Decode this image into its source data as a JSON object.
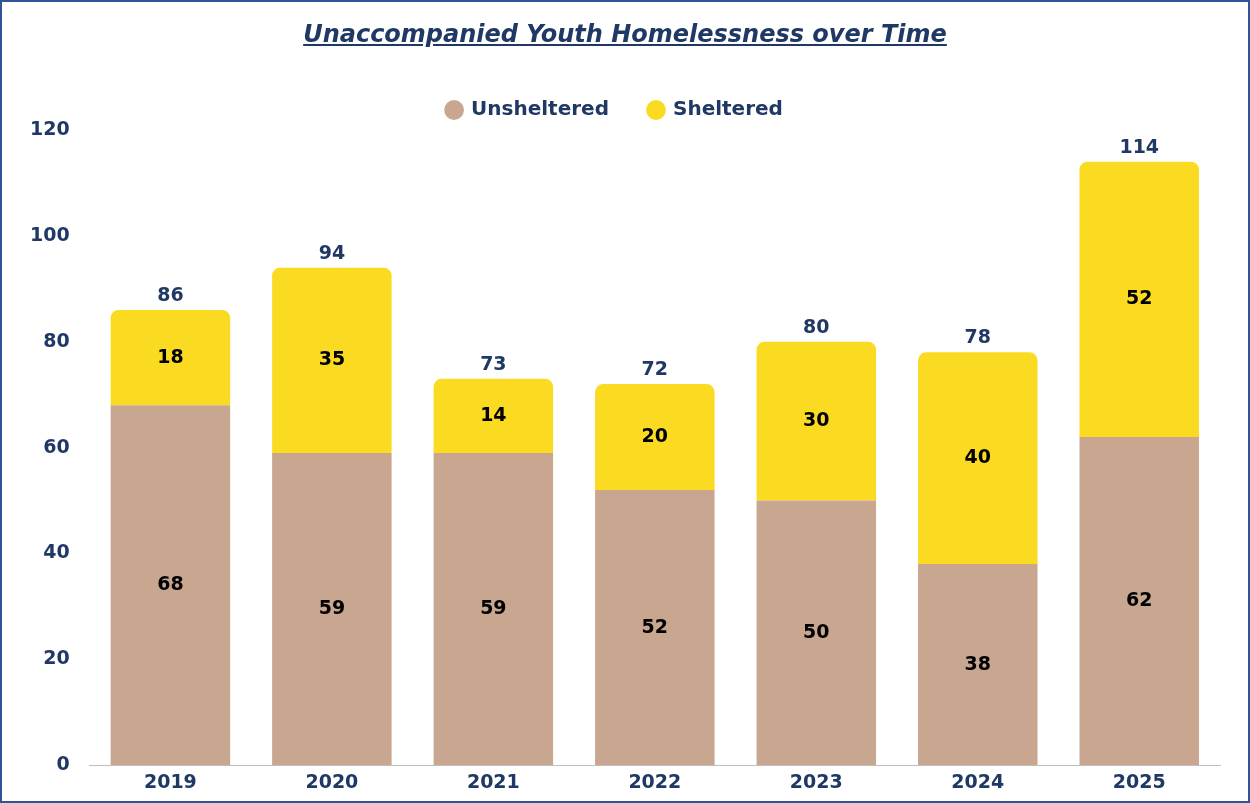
{
  "chart_data": {
    "type": "bar",
    "title": "Unaccompanied Youth Homelessness over Time",
    "categories": [
      "2019",
      "2020",
      "2021",
      "2022",
      "2023",
      "2024",
      "2025"
    ],
    "series": [
      {
        "name": "Unsheltered",
        "color": "#c8a690",
        "values": [
          68,
          59,
          59,
          52,
          50,
          38,
          62
        ]
      },
      {
        "name": "Sheltered",
        "color": "#fbda22",
        "values": [
          18,
          35,
          14,
          20,
          30,
          40,
          52
        ]
      }
    ],
    "stacked": true,
    "totals": [
      "86",
      "94",
      "73",
      "72",
      "80",
      "78",
      "114"
    ],
    "data_labels": true,
    "ylim": [
      0,
      120
    ],
    "yticks": [
      0,
      20,
      40,
      60,
      80,
      100,
      120
    ],
    "grid": false,
    "legend": "top"
  }
}
